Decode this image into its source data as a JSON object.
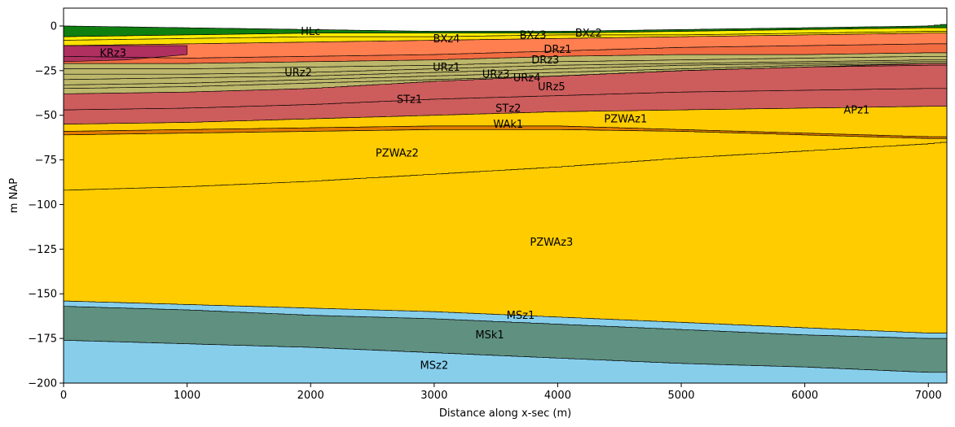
{
  "chart_data": {
    "type": "area",
    "title": "",
    "xlabel": "Distance along x-sec (m)",
    "ylabel": "m NAP",
    "xlim": [
      0,
      7150
    ],
    "ylim": [
      -200,
      10
    ],
    "x_ticks": [
      0,
      1000,
      2000,
      3000,
      4000,
      5000,
      6000,
      7000
    ],
    "y_ticks": [
      0,
      -25,
      -50,
      -75,
      -100,
      -125,
      -150,
      -175,
      -200
    ],
    "grid": false,
    "legend": "none",
    "x": [
      0,
      1000,
      2000,
      3000,
      4000,
      5000,
      6000,
      7000,
      7150
    ],
    "surfaces": [
      [
        0,
        -1,
        -2,
        -3,
        -3,
        -2,
        -1,
        0,
        1
      ],
      [
        -6,
        -5,
        -4,
        -4,
        -4,
        -3,
        -2,
        -1,
        -1
      ],
      [
        -8,
        -7,
        -6,
        -6,
        -5,
        -5,
        -4,
        -3,
        -3
      ],
      [
        -11,
        -10,
        -9,
        -8,
        -7,
        -6,
        -5,
        -4,
        -4
      ],
      [
        -17,
        -18,
        -17,
        -16,
        -14,
        -12,
        -11,
        -10,
        -10
      ],
      [
        -21,
        -21,
        -20,
        -19,
        -17,
        -16,
        -16,
        -15,
        -15
      ],
      [
        -38,
        -37,
        -35,
        -31,
        -28,
        -25,
        -23,
        -21,
        -21
      ],
      [
        -47,
        -46,
        -44,
        -41,
        -39,
        -37,
        -36,
        -35,
        -35
      ],
      [
        -55,
        -54,
        -52,
        -50,
        -48,
        -47,
        -46,
        -45,
        -45
      ],
      [
        -59,
        -58,
        -57,
        -56,
        -56,
        -58,
        -60,
        -62,
        -62
      ],
      [
        -61,
        -60,
        -59,
        -58,
        -58,
        -59,
        -61,
        -63,
        -63
      ],
      [
        -92,
        -90,
        -87,
        -83,
        -79,
        -74,
        -70,
        -66,
        -65
      ],
      [
        -154,
        -156,
        -158,
        -160,
        -163,
        -166,
        -169,
        -172,
        -172
      ],
      [
        -157,
        -159,
        -162,
        -164,
        -167,
        -170,
        -173,
        -175,
        -175
      ],
      [
        -176,
        -178,
        -180,
        -183,
        -186,
        -189,
        -191,
        -194,
        -194
      ],
      [
        -200,
        -200,
        -200,
        -200,
        -200,
        -200,
        -200,
        -200,
        -200
      ]
    ],
    "layers": [
      {
        "name": "HLc",
        "color": "#0f7f10"
      },
      {
        "name": "BXz2/3",
        "color": "#ffee00"
      },
      {
        "name": "BXz4",
        "color": "#ffe000"
      },
      {
        "name": "DRz1",
        "color": "#ff7f50"
      },
      {
        "name": "DRz3",
        "color": "#f26c42"
      },
      {
        "name": "URz1-5",
        "color": "#bdb76b"
      },
      {
        "name": "STz1",
        "color": "#cd5c5c"
      },
      {
        "name": "STz2",
        "color": "#cd5c5c"
      },
      {
        "name": "PZWAz1",
        "color": "#ffcc00"
      },
      {
        "name": "WAk1",
        "color": "#e07a00"
      },
      {
        "name": "PZWAz2",
        "color": "#ffcc00"
      },
      {
        "name": "PZWAz3",
        "color": "#ffcc00"
      },
      {
        "name": "MSz1",
        "color": "#87ceeb"
      },
      {
        "name": "MSk1",
        "color": "#5f9080"
      },
      {
        "name": "MSz2",
        "color": "#87ceeb"
      }
    ],
    "krz3_color": "#b03060",
    "krz3_extent": [
      0,
      1000
    ],
    "urz_extra_lines": [
      [
        -24,
        -24,
        -23,
        -22,
        -20,
        -19,
        -18,
        -17,
        -17
      ],
      [
        -27,
        -27,
        -26,
        -24,
        -22,
        -21,
        -20,
        -19,
        -19
      ],
      [
        -30,
        -29,
        -28,
        -26,
        -24,
        -22,
        -21,
        -20,
        -20
      ],
      [
        -33,
        -32,
        -30,
        -28,
        -26,
        -24,
        -22,
        -21,
        -21
      ],
      [
        -35,
        -34,
        -32,
        -30,
        -28,
        -25,
        -23,
        -22,
        -22
      ]
    ],
    "labels": [
      {
        "text": "HLc",
        "x": 2000,
        "y": -3
      },
      {
        "text": "BXz4",
        "x": 3100,
        "y": -7
      },
      {
        "text": "BXz3",
        "x": 3800,
        "y": -5
      },
      {
        "text": "BXz2",
        "x": 4250,
        "y": -4
      },
      {
        "text": "DRz1",
        "x": 4000,
        "y": -13
      },
      {
        "text": "KRz3",
        "x": 400,
        "y": -15
      },
      {
        "text": "DRz3",
        "x": 3900,
        "y": -19
      },
      {
        "text": "URz2",
        "x": 1900,
        "y": -26
      },
      {
        "text": "URz1",
        "x": 3100,
        "y": -23
      },
      {
        "text": "URz3",
        "x": 3500,
        "y": -27
      },
      {
        "text": "URz4",
        "x": 3750,
        "y": -29
      },
      {
        "text": "URz5",
        "x": 3950,
        "y": -34
      },
      {
        "text": "STz1",
        "x": 2800,
        "y": -41
      },
      {
        "text": "STz2",
        "x": 3600,
        "y": -46
      },
      {
        "text": "PZWAz1",
        "x": 4550,
        "y": -52
      },
      {
        "text": "APz1",
        "x": 6420,
        "y": -47
      },
      {
        "text": "WAk1",
        "x": 3600,
        "y": -55
      },
      {
        "text": "PZWAz2",
        "x": 2700,
        "y": -71
      },
      {
        "text": "PZWAz3",
        "x": 3950,
        "y": -121
      },
      {
        "text": "MSz1",
        "x": 3700,
        "y": -162
      },
      {
        "text": "MSk1",
        "x": 3450,
        "y": -173
      },
      {
        "text": "MSz2",
        "x": 3000,
        "y": -190
      }
    ]
  }
}
